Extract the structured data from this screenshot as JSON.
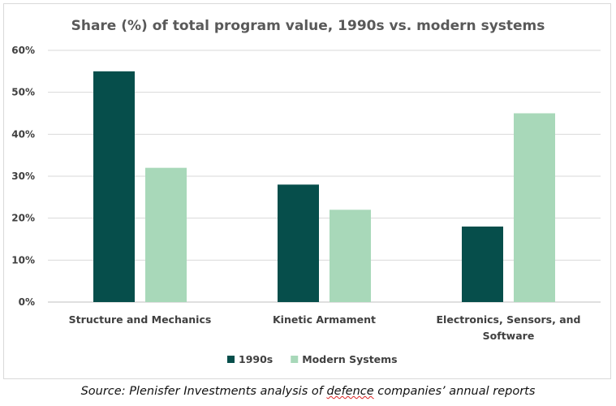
{
  "chart_data": {
    "type": "bar",
    "title": "Share (%) of total program value, 1990s vs. modern systems",
    "categories": [
      [
        "Structure and Mechanics"
      ],
      [
        "Kinetic Armament"
      ],
      [
        "Electronics, Sensors, and",
        "Software"
      ]
    ],
    "series": [
      {
        "name": "1990s",
        "values": [
          55,
          28,
          18
        ],
        "color": "#064e4b"
      },
      {
        "name": "Modern Systems",
        "values": [
          32,
          22,
          45
        ],
        "color": "#a8d8b9"
      }
    ],
    "ylim": [
      0,
      60
    ],
    "yticks": [
      "0%",
      "10%",
      "20%",
      "30%",
      "40%",
      "50%",
      "60%"
    ],
    "ytick_values": [
      0,
      10,
      20,
      30,
      40,
      50,
      60
    ],
    "grid": true,
    "legend_position": "bottom"
  },
  "source": {
    "prefix": "Source: Plenisfer Investments analysis of ",
    "underlined": "defence",
    "suffix": " companies’ annual reports"
  }
}
